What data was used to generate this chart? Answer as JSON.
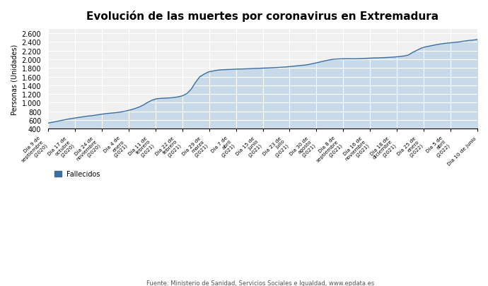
{
  "title": "Evolución de las muertes por coronavirus en Extremadura",
  "ylabel": "Personas (Unidades)",
  "legend_label": "Fallecidos",
  "source_text": "Fuente: Ministerio de Sanidad, Servicios Sociales e Igualdad, www.epdata.es",
  "ylim": [
    400,
    2700
  ],
  "yticks": [
    400,
    600,
    800,
    1000,
    1200,
    1400,
    1600,
    1800,
    2000,
    2200,
    2400,
    2600
  ],
  "line_color": "#3a6e9e",
  "fill_color": "#c8d9ea",
  "background_color": "#f0f0f0",
  "tick_labels": [
    "Día 9 de\nseptiembre\n(2020)",
    "Día 17 de\noctubre\n(2020)",
    "Día 24 de\nnoviembre\n(2020)",
    "Día 4 de\nenero\n(2021)",
    "Día 11 de\nfebrero\n(2021)",
    "Día 22 de\nfebrero\n(2021)",
    "Día 29 de\nmarzo\n(2021)",
    "Día 7 de\nabril\n(2021)",
    "Día 15 de\njunio\n(2021)",
    "Día 23 de\njulio\n(2021)",
    "Día 30 de\nagosto\n(2021)",
    "Día 8 de\nseptiembre\n(2021)",
    "Día 16 de\nnoviembre\n(2021)",
    "Día 18 de\ndiciembre\n(2021)",
    "Día 25 de\nenero\n(2022)",
    "Día 5 de\nabril\n(2022)",
    "Día 10 de junio"
  ],
  "data_y": [
    530,
    550,
    570,
    590,
    610,
    630,
    645,
    660,
    675,
    690,
    700,
    715,
    730,
    745,
    755,
    765,
    775,
    790,
    810,
    835,
    865,
    900,
    950,
    1010,
    1060,
    1090,
    1100,
    1105,
    1110,
    1120,
    1135,
    1160,
    1210,
    1310,
    1470,
    1600,
    1660,
    1710,
    1730,
    1748,
    1758,
    1762,
    1767,
    1771,
    1775,
    1778,
    1782,
    1786,
    1790,
    1794,
    1798,
    1802,
    1807,
    1812,
    1818,
    1825,
    1835,
    1845,
    1855,
    1865,
    1878,
    1900,
    1920,
    1945,
    1968,
    1988,
    2003,
    2008,
    2012,
    2013,
    2012,
    2013,
    2016,
    2020,
    2025,
    2030,
    2032,
    2036,
    2040,
    2046,
    2053,
    2063,
    2075,
    2095,
    2155,
    2205,
    2255,
    2285,
    2305,
    2325,
    2345,
    2360,
    2372,
    2382,
    2392,
    2402,
    2420,
    2432,
    2442,
    2455
  ]
}
